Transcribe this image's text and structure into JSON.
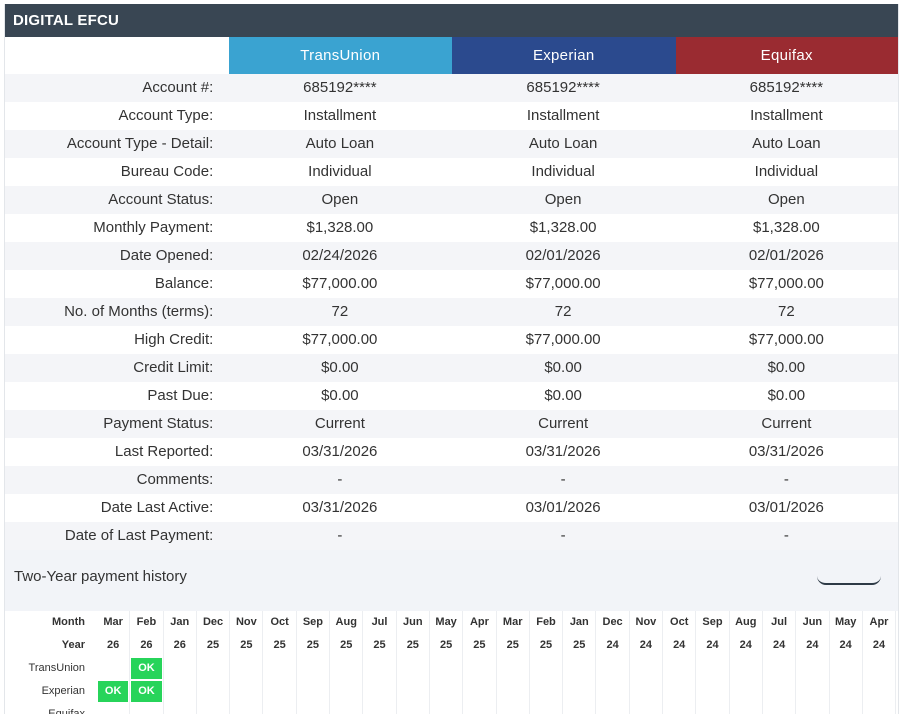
{
  "title": "DIGITAL EFCU",
  "bureaus": [
    {
      "name": "TransUnion",
      "color": "#3aa3d1"
    },
    {
      "name": "Experian",
      "color": "#2b4a8e"
    },
    {
      "name": "Equifax",
      "color": "#9a2b31"
    }
  ],
  "rows": [
    {
      "label": "Account #:",
      "values": [
        "685192****",
        "685192****",
        "685192****"
      ]
    },
    {
      "label": "Account Type:",
      "values": [
        "Installment",
        "Installment",
        "Installment"
      ]
    },
    {
      "label": "Account Type - Detail:",
      "values": [
        "Auto Loan",
        "Auto Loan",
        "Auto Loan"
      ]
    },
    {
      "label": "Bureau Code:",
      "values": [
        "Individual",
        "Individual",
        "Individual"
      ]
    },
    {
      "label": "Account Status:",
      "values": [
        "Open",
        "Open",
        "Open"
      ]
    },
    {
      "label": "Monthly Payment:",
      "values": [
        "$1,328.00",
        "$1,328.00",
        "$1,328.00"
      ]
    },
    {
      "label": "Date Opened:",
      "values": [
        "02/24/2026",
        "02/01/2026",
        "02/01/2026"
      ]
    },
    {
      "label": "Balance:",
      "values": [
        "$77,000.00",
        "$77,000.00",
        "$77,000.00"
      ]
    },
    {
      "label": "No. of Months (terms):",
      "values": [
        "72",
        "72",
        "72"
      ]
    },
    {
      "label": "High Credit:",
      "values": [
        "$77,000.00",
        "$77,000.00",
        "$77,000.00"
      ]
    },
    {
      "label": "Credit Limit:",
      "values": [
        "$0.00",
        "$0.00",
        "$0.00"
      ]
    },
    {
      "label": "Past Due:",
      "values": [
        "$0.00",
        "$0.00",
        "$0.00"
      ]
    },
    {
      "label": "Payment Status:",
      "values": [
        "Current",
        "Current",
        "Current"
      ]
    },
    {
      "label": "Last Reported:",
      "values": [
        "03/31/2026",
        "03/31/2026",
        "03/31/2026"
      ]
    },
    {
      "label": "Comments:",
      "values": [
        "-",
        "-",
        "-"
      ]
    },
    {
      "label": "Date Last Active:",
      "values": [
        "03/31/2026",
        "03/01/2026",
        "03/01/2026"
      ]
    },
    {
      "label": "Date of Last Payment:",
      "values": [
        "-",
        "-",
        "-"
      ]
    }
  ],
  "history": {
    "title": "Two-Year payment history",
    "month_label": "Month",
    "year_label": "Year",
    "months": [
      "Mar",
      "Feb",
      "Jan",
      "Dec",
      "Nov",
      "Oct",
      "Sep",
      "Aug",
      "Jul",
      "Jun",
      "May",
      "Apr",
      "Mar",
      "Feb",
      "Jan",
      "Dec",
      "Nov",
      "Oct",
      "Sep",
      "Aug",
      "Jul",
      "Jun",
      "May",
      "Apr"
    ],
    "years": [
      "26",
      "26",
      "26",
      "25",
      "25",
      "25",
      "25",
      "25",
      "25",
      "25",
      "25",
      "25",
      "25",
      "25",
      "25",
      "24",
      "24",
      "24",
      "24",
      "24",
      "24",
      "24",
      "24",
      "24"
    ],
    "status_rows": [
      {
        "bureau": "TransUnion",
        "cells": [
          "",
          "OK",
          "",
          "",
          "",
          "",
          "",
          "",
          "",
          "",
          "",
          "",
          "",
          "",
          "",
          "",
          "",
          "",
          "",
          "",
          "",
          "",
          "",
          ""
        ]
      },
      {
        "bureau": "Experian",
        "cells": [
          "OK",
          "OK",
          "",
          "",
          "",
          "",
          "",
          "",
          "",
          "",
          "",
          "",
          "",
          "",
          "",
          "",
          "",
          "",
          "",
          "",
          "",
          "",
          "",
          ""
        ]
      },
      {
        "bureau": "Equifax",
        "cells": [
          "",
          "",
          "",
          "",
          "",
          "",
          "",
          "",
          "",
          "",
          "",
          "",
          "",
          "",
          "",
          "",
          "",
          "",
          "",
          "",
          "",
          "",
          "",
          ""
        ]
      }
    ],
    "ok_color": "#27d45a"
  }
}
